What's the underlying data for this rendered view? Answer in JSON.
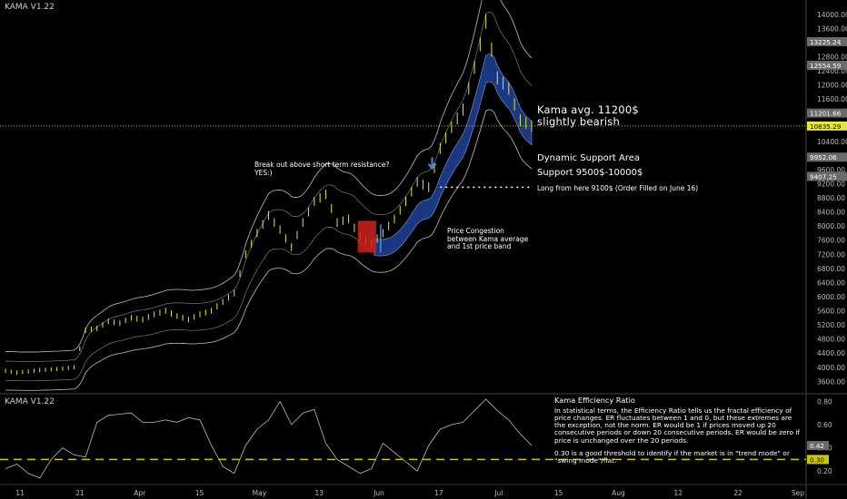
{
  "price_pane": {
    "indicator_label": "KAMA V1.22"
  },
  "osc_pane": {
    "indicator_label": "KAMA V1.22"
  },
  "annotations": {
    "breakout": "Break out above short term resistance?\nYES:)",
    "kama_avg": "Kama avg. 11200$\nslightly bearish",
    "dynamic_support": "Dynamic Support Area",
    "support_range": "Support 9500$-10000$",
    "long_entry": "Long from here 9100$ (Order Filled on June 16)",
    "congestion": "Price Congestion\nbetween Kama average\nand 1st price band",
    "efficiency_title": "Kama Efficiency Ratio",
    "efficiency_p1": "In statistical terms, the Efficiency Ratio tells us the fractal efficiency of price changes. ER fluctuates between 1 and 0, but these extremes are the exception, not the norm. ER would be 1 if prices moved up 20 consecutive periods or down 20 consecutive periods. ER would be zero if price is unchanged over the 20 periods.",
    "efficiency_p2": "0.30 is a good threshold to identify if the market is in \"trend mode\" or \"swing mode\"/flat."
  },
  "colors": {
    "background": "#000000",
    "candle": "#e6e640",
    "band": "#c8c8c8",
    "kama_fill": "#1c3a8a",
    "threshold": "#c8c800",
    "congestion_box": "#d42020",
    "arrow": "#4a8fd8",
    "current_price_line": "#e6e640"
  },
  "chart_data": [
    {
      "type": "candlestick",
      "title": "KAMA V1.22",
      "y_ticks": [
        3600,
        4000,
        4400,
        4800,
        5200,
        5600,
        6000,
        6400,
        6800,
        7200,
        7600,
        8000,
        8400,
        8800,
        9200,
        9600,
        10000,
        10400,
        10800,
        11200,
        11600,
        12000,
        12400,
        12800,
        13200,
        13600,
        14000
      ],
      "ylim": [
        3300,
        14200
      ],
      "price_labels": [
        {
          "value": 13225.24,
          "style": "band"
        },
        {
          "value": 12554.59,
          "style": "band"
        },
        {
          "value": 11201.66,
          "style": "band"
        },
        {
          "value": 10835.29,
          "style": "current"
        },
        {
          "value": 9952.06,
          "style": "band"
        },
        {
          "value": 9407.25,
          "style": "band"
        }
      ],
      "x_tick_labels": [
        "11",
        "21",
        "Apr",
        "15",
        "May",
        "13",
        "Jun",
        "17",
        "Jul",
        "15",
        "Aug",
        "12",
        "22",
        "Sep"
      ],
      "series": [
        {
          "name": "Price",
          "values": [
            3900,
            3850,
            3880,
            3920,
            3940,
            3960,
            4000,
            5050,
            5100,
            5300,
            5250,
            5400,
            5350,
            5500,
            5600,
            5450,
            5350,
            5500,
            5600,
            5850,
            6100,
            7200,
            7800,
            8300,
            7900,
            7400,
            8100,
            8700,
            8900,
            8100,
            8200,
            7700,
            7500,
            7800,
            8200,
            8700,
            9250,
            9100,
            10200,
            10800,
            11300,
            12500,
            13800,
            12200,
            11900,
            11000,
            10835
          ]
        }
      ]
    },
    {
      "type": "line",
      "title": "KAMA V1.22",
      "y_ticks": [
        0.2,
        0.4,
        0.6,
        0.8
      ],
      "ylim": [
        0.1,
        0.85
      ],
      "threshold": 0.3,
      "price_labels": [
        {
          "value": 0.42
        },
        {
          "value": 0.3
        }
      ],
      "series": [
        {
          "name": "Efficiency Ratio",
          "values": [
            0.22,
            0.26,
            0.18,
            0.14,
            0.3,
            0.4,
            0.34,
            0.32,
            0.62,
            0.68,
            0.69,
            0.7,
            0.62,
            0.62,
            0.64,
            0.62,
            0.66,
            0.64,
            0.42,
            0.24,
            0.18,
            0.42,
            0.56,
            0.64,
            0.8,
            0.6,
            0.7,
            0.73,
            0.44,
            0.3,
            0.24,
            0.18,
            0.22,
            0.44,
            0.36,
            0.28,
            0.2,
            0.42,
            0.56,
            0.6,
            0.62,
            0.72,
            0.82,
            0.72,
            0.64,
            0.52,
            0.42
          ]
        }
      ]
    }
  ]
}
